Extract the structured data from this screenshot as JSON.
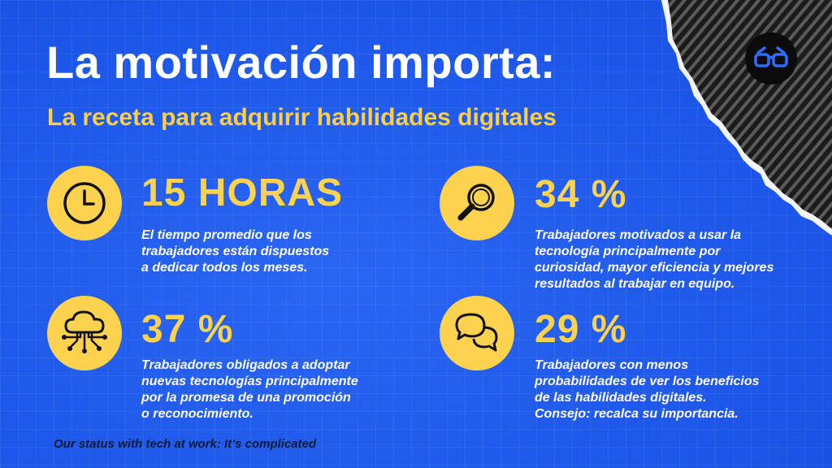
{
  "header": {
    "title": "La motivación importa:",
    "subtitle": "La receta para adquirir habilidades digitales"
  },
  "stats": [
    {
      "icon": "clock-icon",
      "value": "15 HORAS",
      "lines": [
        "El tiempo promedio que los",
        "trabajadores están dispuestos",
        "a dedicar todos los meses."
      ]
    },
    {
      "icon": "magnifier-icon",
      "value": "34 %",
      "lines": [
        "Trabajadores motivados a usar la",
        "tecnología principalmente por",
        "curiosidad, mayor eficiencia y mejores",
        "resultados al trabajar en equipo."
      ]
    },
    {
      "icon": "cloud-network-icon",
      "value": "37 %",
      "lines": [
        "Trabajadores obligados a adoptar",
        "nuevas tecnologías principalmente",
        "por la promesa de una promoción",
        "o reconocimiento."
      ]
    },
    {
      "icon": "chat-bubbles-icon",
      "value": "29 %",
      "lines": [
        "Trabajadores con menos",
        "probabilidades de ver los beneficios",
        "de las habilidades digitales.",
        "Consejo: recalca su importancia."
      ]
    }
  ],
  "footer": "Our status with tech at work: It’s complicated",
  "logo_icon": "glasses-icon",
  "colors": {
    "background": "#1f5bef",
    "accent": "#fcd24e",
    "title": "#ffffff",
    "corner": "#1a1a1a"
  }
}
